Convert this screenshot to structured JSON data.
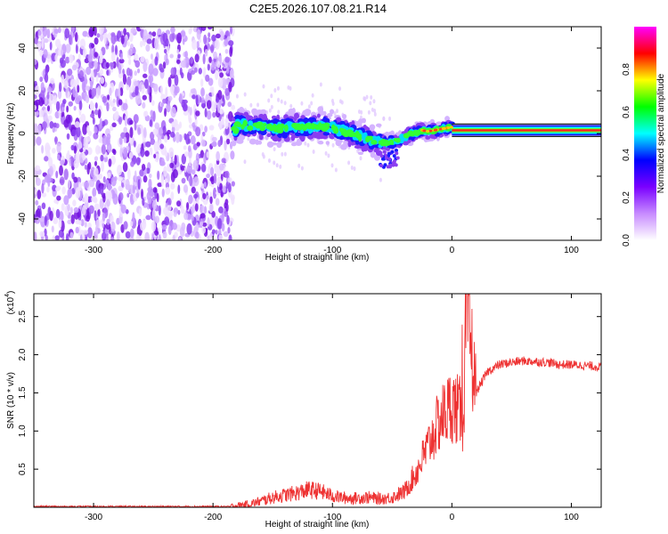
{
  "figure": {
    "title": "C2E5.2026.107.08.21.R14"
  },
  "chart_data": [
    {
      "type": "heatmap",
      "name": "spectrogram",
      "xlabel": "Height of straight line (km)",
      "ylabel": "Frequency (Hz)",
      "xlim": [
        -350,
        125
      ],
      "ylim": [
        -50,
        50
      ],
      "xticks": [
        -300,
        -200,
        -100,
        0,
        100
      ],
      "yticks": [
        -40,
        -20,
        0,
        20,
        40
      ],
      "noise_region_x": [
        -350,
        -183
      ],
      "signal_ridge": {
        "x": [
          -180,
          -170,
          -160,
          -150,
          -140,
          -130,
          -120,
          -110,
          -100,
          -90,
          -80,
          -70,
          -60,
          -55,
          -50,
          -45,
          -40,
          -35,
          -30,
          -25,
          -20,
          -15,
          -10,
          -5,
          0,
          5,
          10,
          20,
          40,
          60,
          80,
          100,
          125
        ],
        "y": [
          4.5,
          3.5,
          3.5,
          2.5,
          2.5,
          3.0,
          3.0,
          3.5,
          2.5,
          1.0,
          -1.0,
          -2.5,
          -4.0,
          -4.5,
          -4.0,
          -3.0,
          -2.0,
          -0.5,
          0.5,
          1.5,
          1.0,
          1.5,
          2.0,
          2.5,
          3.0,
          1.8,
          1.6,
          1.5,
          1.5,
          1.5,
          1.6,
          1.5,
          1.5
        ]
      },
      "colorbar": {
        "label": "Normalized spectral amplitude",
        "range": [
          0,
          1
        ],
        "ticks": [
          "0.0",
          "0.2",
          "0.4",
          "0.6",
          "0.8"
        ],
        "colors": [
          "#ffffff",
          "#c78bff",
          "#7a00ff",
          "#0000ff",
          "#00ffff",
          "#00ff00",
          "#ffff00",
          "#ff0000",
          "#ff00ff"
        ]
      }
    },
    {
      "type": "line",
      "name": "snr",
      "xlabel": "Height of straight line (km)",
      "ylabel": "SNR (10 * v/v)",
      "y_multiplier_label": "(x10",
      "y_multiplier_exp": "4",
      "xlim": [
        -350,
        125
      ],
      "ylim": [
        0,
        2.8
      ],
      "xticks": [
        -300,
        -200,
        -100,
        0,
        100
      ],
      "yticks": [
        "0.5",
        "1.0",
        "1.5",
        "2.0",
        "2.5"
      ],
      "line_color": "#ee3333",
      "series": [
        {
          "name": "SNR",
          "x": [
            -350,
            -250,
            -185,
            -170,
            -160,
            -150,
            -140,
            -130,
            -120,
            -110,
            -100,
            -90,
            -80,
            -70,
            -60,
            -50,
            -40,
            -30,
            -20,
            -10,
            0,
            10,
            12,
            20,
            30,
            40,
            50,
            60,
            70,
            80,
            90,
            100,
            110,
            125
          ],
          "y": [
            0.01,
            0.01,
            0.01,
            0.04,
            0.08,
            0.13,
            0.16,
            0.19,
            0.23,
            0.21,
            0.15,
            0.12,
            0.12,
            0.13,
            0.11,
            0.13,
            0.2,
            0.45,
            0.8,
            1.15,
            1.35,
            1.2,
            2.7,
            1.5,
            1.78,
            1.87,
            1.9,
            1.92,
            1.91,
            1.9,
            1.87,
            1.87,
            1.86,
            1.84
          ]
        }
      ]
    }
  ]
}
